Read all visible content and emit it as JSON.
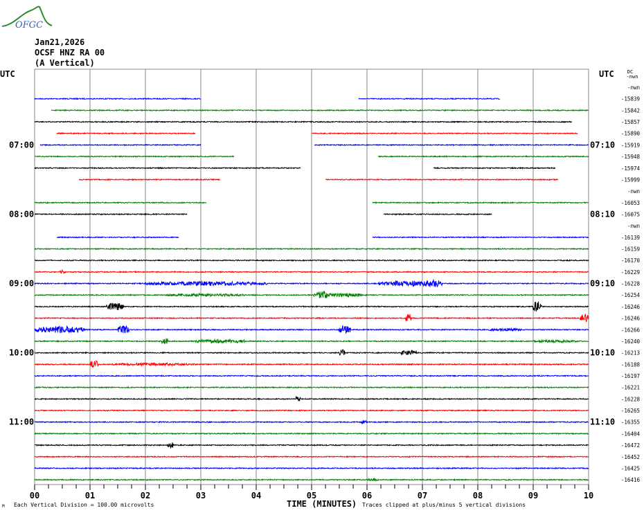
{
  "header": {
    "date": "Jan21,2026",
    "station": "OCSF HNZ RA 00",
    "component": "(A Vertical)",
    "logo_text": "OFGC"
  },
  "footer": {
    "scale_note": "Each Vertical Division =  100.00 microvolts",
    "xlabel": "TIME (MINUTES)",
    "clip_note": "Traces clipped at plus/minus 5 vertical divisions",
    "corner_mark": "M"
  },
  "chart_data": {
    "type": "line",
    "title": "",
    "xlabel": "TIME (MINUTES)",
    "xlim": [
      0,
      10
    ],
    "x_ticks": [
      "00",
      "01",
      "02",
      "03",
      "04",
      "05",
      "06",
      "07",
      "08",
      "09",
      "10"
    ],
    "left_axis_title": "UTC",
    "right_axis_title": "UTC",
    "dc_header": "DC",
    "dc_header_unit": "nwn",
    "left_hour_labels": [
      {
        "row": 5,
        "label": "07:00"
      },
      {
        "row": 11,
        "label": "08:00"
      },
      {
        "row": 17,
        "label": "09:00"
      },
      {
        "row": 23,
        "label": "10:00"
      },
      {
        "row": 29,
        "label": "11:00"
      }
    ],
    "right_hour_labels": [
      {
        "row": 5,
        "label": "07:10"
      },
      {
        "row": 11,
        "label": "08:10"
      },
      {
        "row": 17,
        "label": "09:10"
      },
      {
        "row": 23,
        "label": "10:10"
      },
      {
        "row": 29,
        "label": "11:10"
      }
    ],
    "colors": [
      "#ff0000",
      "#0000ff",
      "#008000",
      "#000000"
    ],
    "grid": true,
    "rows": [
      {
        "dc": "-nwn",
        "segments": []
      },
      {
        "dc": "-15839",
        "segments": [
          [
            0,
            3
          ],
          [
            5.85,
            8.4
          ]
        ]
      },
      {
        "dc": "-15842",
        "segments": [
          [
            0.3,
            10
          ]
        ]
      },
      {
        "dc": "-15857",
        "segments": [
          [
            0,
            9.7
          ]
        ]
      },
      {
        "dc": "-15890",
        "segments": [
          [
            0.4,
            2.9
          ],
          [
            5,
            9.8
          ]
        ]
      },
      {
        "dc": "-15919",
        "segments": [
          [
            0.1,
            3
          ],
          [
            5.05,
            10
          ]
        ]
      },
      {
        "dc": "-15948",
        "segments": [
          [
            0,
            3.6
          ],
          [
            6.2,
            10
          ]
        ]
      },
      {
        "dc": "-15974",
        "segments": [
          [
            0,
            4.8
          ],
          [
            7.2,
            9.4
          ]
        ]
      },
      {
        "dc": "-15999",
        "segments": [
          [
            0.8,
            3.35
          ],
          [
            5.25,
            9.45
          ]
        ]
      },
      {
        "dc": "-nwn",
        "segments": []
      },
      {
        "dc": "-16053",
        "segments": [
          [
            0,
            3.1
          ],
          [
            6.1,
            10
          ]
        ]
      },
      {
        "dc": "-16075",
        "segments": [
          [
            0,
            2.75
          ],
          [
            6.3,
            8.25
          ]
        ]
      },
      {
        "dc": "-nwn",
        "segments": []
      },
      {
        "dc": "-16139",
        "segments": [
          [
            0.4,
            2.6
          ],
          [
            6.1,
            10
          ]
        ]
      },
      {
        "dc": "-16159",
        "segments": [
          [
            0,
            10
          ]
        ]
      },
      {
        "dc": "-16170",
        "segments": [
          [
            0,
            10
          ]
        ]
      },
      {
        "dc": "-16229",
        "segments": [
          [
            0,
            10
          ]
        ],
        "bursts": [
          [
            0.45,
            0.1,
            3
          ]
        ]
      },
      {
        "dc": "-16228",
        "segments": [
          [
            0,
            10
          ]
        ],
        "bursts": [
          [
            2.0,
            2.2,
            3
          ],
          [
            6.2,
            1.1,
            4
          ],
          [
            7.05,
            0.3,
            6
          ]
        ]
      },
      {
        "dc": "-16254",
        "segments": [
          [
            0,
            10
          ]
        ],
        "bursts": [
          [
            2.4,
            1.4,
            2
          ],
          [
            5.0,
            0.9,
            3
          ],
          [
            5.1,
            0.2,
            6
          ]
        ]
      },
      {
        "dc": "-16246",
        "segments": [
          [
            0,
            10
          ]
        ],
        "bursts": [
          [
            1.3,
            0.3,
            6
          ],
          [
            9.0,
            0.15,
            8
          ]
        ]
      },
      {
        "dc": "-16246",
        "segments": [
          [
            0,
            10
          ]
        ],
        "bursts": [
          [
            6.7,
            0.1,
            7
          ],
          [
            9.85,
            0.15,
            6
          ]
        ]
      },
      {
        "dc": "-16266",
        "segments": [
          [
            0,
            10
          ]
        ],
        "bursts": [
          [
            0,
            0.9,
            5
          ],
          [
            1.5,
            0.2,
            6
          ],
          [
            5.5,
            0.2,
            6
          ],
          [
            8.2,
            0.6,
            2
          ]
        ]
      },
      {
        "dc": "-16240",
        "segments": [
          [
            0,
            10
          ]
        ],
        "bursts": [
          [
            2.3,
            0.1,
            6
          ],
          [
            2.9,
            0.9,
            3
          ],
          [
            9.0,
            0.8,
            2
          ]
        ]
      },
      {
        "dc": "-16213",
        "segments": [
          [
            0,
            10
          ]
        ],
        "bursts": [
          [
            5.5,
            0.1,
            5
          ],
          [
            6.6,
            0.3,
            4
          ]
        ]
      },
      {
        "dc": "-16188",
        "segments": [
          [
            0,
            10
          ]
        ],
        "bursts": [
          [
            1.0,
            0.15,
            6
          ],
          [
            1.4,
            1.5,
            2
          ]
        ]
      },
      {
        "dc": "-16197",
        "segments": [
          [
            0,
            10
          ]
        ]
      },
      {
        "dc": "-16221",
        "segments": [
          [
            0,
            10
          ]
        ]
      },
      {
        "dc": "-16228",
        "segments": [
          [
            0,
            10
          ]
        ],
        "bursts": [
          [
            4.7,
            0.1,
            4
          ]
        ]
      },
      {
        "dc": "-16265",
        "segments": [
          [
            0,
            10
          ]
        ]
      },
      {
        "dc": "-16355",
        "segments": [
          [
            0,
            10
          ]
        ],
        "bursts": [
          [
            5.9,
            0.1,
            3
          ]
        ]
      },
      {
        "dc": "-16404",
        "segments": [
          [
            0,
            10
          ]
        ]
      },
      {
        "dc": "-16472",
        "segments": [
          [
            0,
            10
          ]
        ],
        "bursts": [
          [
            2.4,
            0.1,
            7
          ]
        ]
      },
      {
        "dc": "-16452",
        "segments": [
          [
            0,
            10
          ]
        ]
      },
      {
        "dc": "-16425",
        "segments": [
          [
            0,
            10
          ]
        ]
      },
      {
        "dc": "-16416",
        "segments": [
          [
            0,
            10
          ]
        ],
        "bursts": [
          [
            6.0,
            0.2,
            2
          ]
        ]
      }
    ]
  }
}
